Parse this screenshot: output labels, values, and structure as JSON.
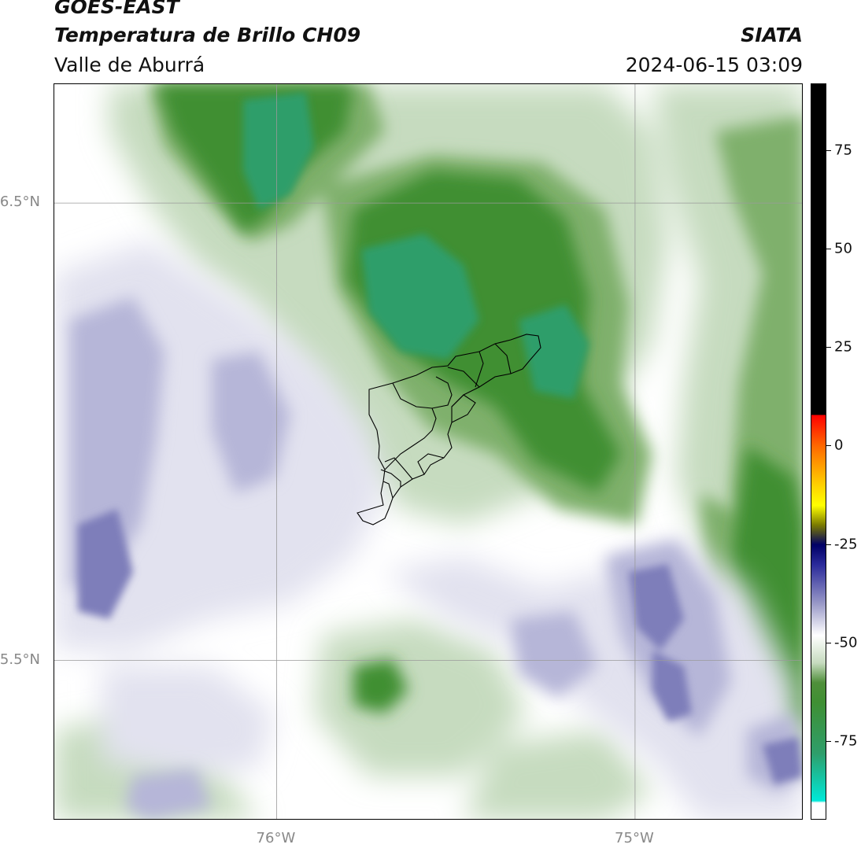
{
  "header": {
    "satellite": "GOES-EAST",
    "product": "Temperatura de Brillo CH09",
    "region": "Valle de Aburrá",
    "organization": "SIATA",
    "timestamp": "2024-06-15 03:09"
  },
  "map": {
    "lat_labels": [
      {
        "id": "lat-6-5",
        "value": 6.5,
        "text": "6.5°N"
      },
      {
        "id": "lat-5-5",
        "value": 5.5,
        "text": "5.5°N"
      }
    ],
    "lon_labels": [
      {
        "id": "lon-76",
        "value": -76.0,
        "text": "76°W"
      },
      {
        "id": "lon-75",
        "value": -75.0,
        "text": "75°W"
      }
    ],
    "extent": {
      "lon_min": -76.62,
      "lon_max": -74.53,
      "lat_min": 5.15,
      "lat_max": 6.76
    },
    "colors": {
      "white": "#ffffff",
      "light_green": "#c6dbbf",
      "mid_green": "#7fb06c",
      "dark_green": "#3f8f33",
      "teal_green": "#2e9e6b",
      "light_lavender": "#e2e2ef",
      "lavender": "#b6b6d8",
      "purple": "#7e7eba"
    }
  },
  "colorbar": {
    "ticks": [
      {
        "value": 75,
        "text": "75"
      },
      {
        "value": 50,
        "text": "50"
      },
      {
        "value": 25,
        "text": "25"
      },
      {
        "value": 0,
        "text": "0"
      },
      {
        "value": -25,
        "text": "-25"
      },
      {
        "value": -50,
        "text": "-50"
      },
      {
        "value": -75,
        "text": "-75"
      }
    ],
    "vmin": -95,
    "vmax": 92,
    "stops": [
      {
        "value": 92,
        "color": "#000000"
      },
      {
        "value": 8,
        "color": "#000000"
      },
      {
        "value": 8,
        "color": "#ff0000"
      },
      {
        "value": 0,
        "color": "#ff6a00"
      },
      {
        "value": -10,
        "color": "#ffd200"
      },
      {
        "value": -15,
        "color": "#ffff00"
      },
      {
        "value": -20,
        "color": "#7a7a00"
      },
      {
        "value": -25,
        "color": "#000066"
      },
      {
        "value": -30,
        "color": "#2a2a9a"
      },
      {
        "value": -40,
        "color": "#9a9ac8"
      },
      {
        "value": -48,
        "color": "#ffffff"
      },
      {
        "value": -55,
        "color": "#c6dbbf"
      },
      {
        "value": -60,
        "color": "#4f8f3a"
      },
      {
        "value": -65,
        "color": "#3f8f33"
      },
      {
        "value": -78,
        "color": "#2e9e6b"
      },
      {
        "value": -90,
        "color": "#00e8d8"
      },
      {
        "value": -90.5,
        "color": "#ffffff"
      },
      {
        "value": -95,
        "color": "#ffffff"
      }
    ]
  }
}
